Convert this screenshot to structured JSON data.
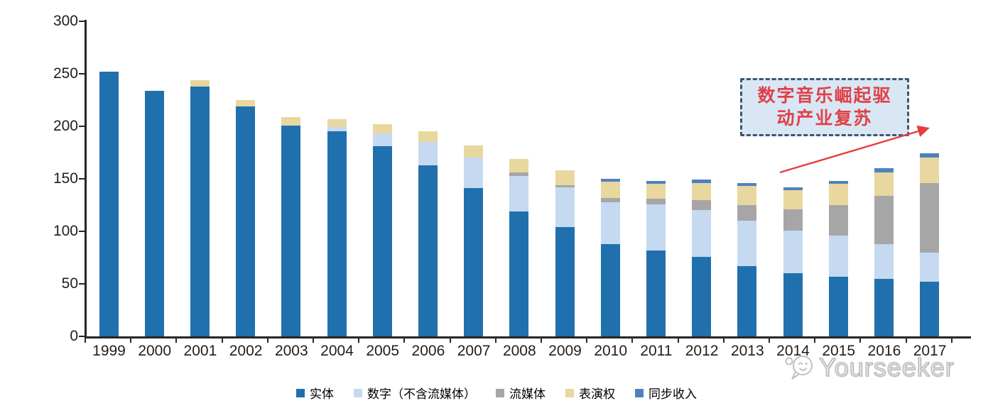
{
  "chart_data": {
    "type": "bar",
    "stacked": true,
    "title": "",
    "xlabel": "",
    "ylabel": "",
    "categories": [
      "1999",
      "2000",
      "2001",
      "2002",
      "2003",
      "2004",
      "2005",
      "2006",
      "2007",
      "2008",
      "2009",
      "2010",
      "2011",
      "2012",
      "2013",
      "2014",
      "2015",
      "2016",
      "2017"
    ],
    "series": [
      {
        "name": "实体",
        "color": "#2070AE",
        "values": [
          252,
          234,
          238,
          219,
          201,
          195,
          181,
          163,
          141,
          119,
          104,
          88,
          82,
          76,
          67,
          60,
          57,
          55,
          52
        ]
      },
      {
        "name": "数字（不含流媒体）",
        "color": "#C5D9F1",
        "values": [
          0,
          0,
          0,
          0,
          0,
          4,
          12,
          22,
          29,
          34,
          38,
          40,
          44,
          44,
          43,
          41,
          39,
          33,
          28
        ]
      },
      {
        "name": "流媒体",
        "color": "#A6A6A6",
        "values": [
          0,
          0,
          0,
          0,
          0,
          0,
          0,
          0,
          0,
          3,
          2,
          4,
          5,
          10,
          15,
          20,
          29,
          46,
          66
        ]
      },
      {
        "name": "表演权",
        "color": "#E8D79E",
        "values": [
          0,
          0,
          6,
          6,
          8,
          8,
          9,
          10,
          12,
          13,
          14,
          15,
          14,
          16,
          18,
          18,
          20,
          22,
          24
        ]
      },
      {
        "name": "同步收入",
        "color": "#4D82BE",
        "values": [
          0,
          0,
          0,
          0,
          0,
          0,
          0,
          0,
          0,
          0,
          0,
          3,
          3,
          3,
          3,
          3,
          3,
          4,
          4
        ]
      }
    ],
    "ylim": [
      0,
      300
    ],
    "yticks": [
      0,
      50,
      100,
      150,
      200,
      250,
      300
    ],
    "grid": false,
    "legend_position": "bottom"
  },
  "annotation": {
    "line1": "数字音乐崛起驱",
    "line2": "动产业复苏",
    "text_color": "#DF4148",
    "box_fill": "#D9E7F5",
    "box_border": "#3C5672",
    "arrow_color": "#E73C42"
  },
  "watermark": {
    "text": "Yourseeker"
  }
}
